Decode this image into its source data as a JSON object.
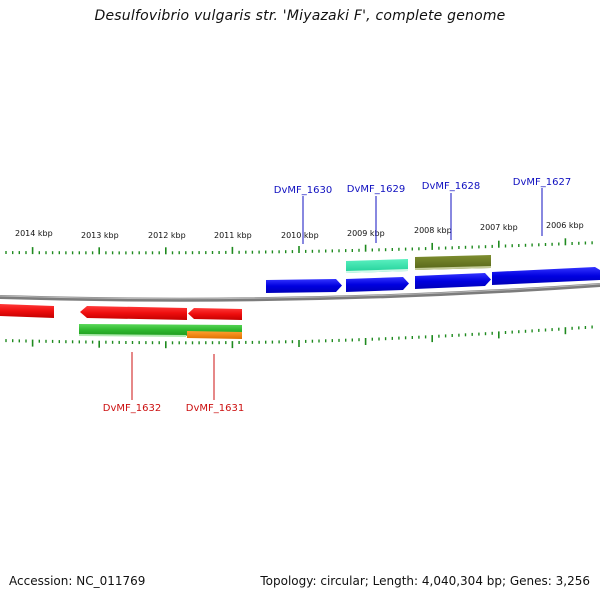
{
  "title": "Desulfovibrio vulgaris str. 'Miyazaki F', complete genome",
  "footer": {
    "accession": "Accession: NC_011769",
    "summary": "Topology: circular; Length: 4,040,304 bp; Genes: 3,256"
  },
  "scale_labels": [
    "2014 kbp",
    "2013 kbp",
    "2012 kbp",
    "2011 kbp",
    "2010 kbp",
    "2009 kbp",
    "2008 kbp",
    "2007 kbp",
    "2006 kbp"
  ],
  "colors": {
    "forward_cds": "#0000e8",
    "reverse_cds": "#ee1010",
    "forward_label": "#1010c0",
    "reverse_label": "#cc1010",
    "backbone": "#888888",
    "tick": "#1e8a1e",
    "green_feature": "#38b838",
    "orange_feature": "#f08000",
    "teal_feature": "#30e0a8",
    "olive_feature": "#6a7a22"
  },
  "gene_labels": {
    "forward": [
      "DvMF_1630",
      "DvMF_1629",
      "DvMF_1628",
      "DvMF_1627"
    ],
    "reverse": [
      "DvMF_1632",
      "DvMF_1631"
    ]
  }
}
